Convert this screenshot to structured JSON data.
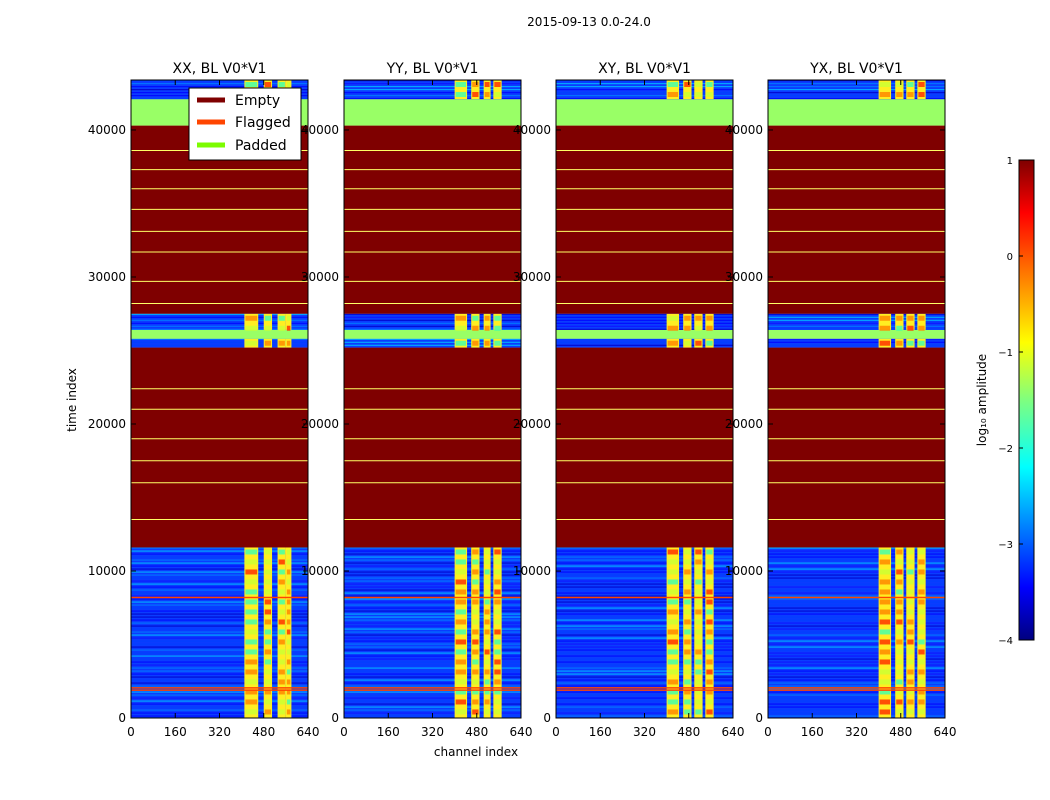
{
  "chart_data": {
    "type": "heatmap",
    "suptitle": "2015-09-13 0.0-24.0",
    "xlabel": "channel index",
    "ylabel": "time index",
    "x_ticks": [
      0,
      160,
      320,
      480,
      640
    ],
    "y_ticks": [
      0,
      10000,
      20000,
      30000,
      40000
    ],
    "xlim": [
      0,
      640
    ],
    "ylim": [
      0,
      43400
    ],
    "panels": [
      {
        "title": "XX, BL V0*V1",
        "bright_channels": [
          [
            410,
            460
          ],
          [
            480,
            510
          ],
          [
            530,
            560
          ],
          [
            560,
            580
          ]
        ]
      },
      {
        "title": "YY, BL V0*V1",
        "bright_channels": [
          [
            400,
            445
          ],
          [
            460,
            490
          ],
          [
            505,
            530
          ],
          [
            540,
            570
          ]
        ]
      },
      {
        "title": "XY, BL V0*V1",
        "bright_channels": [
          [
            400,
            445
          ],
          [
            460,
            490
          ],
          [
            500,
            530
          ],
          [
            540,
            570
          ]
        ]
      },
      {
        "title": "YX, BL V0*V1",
        "bright_channels": [
          [
            400,
            445
          ],
          [
            460,
            490
          ],
          [
            500,
            530
          ],
          [
            540,
            570
          ]
        ]
      }
    ],
    "time_regions": [
      {
        "from": 0,
        "to": 11600,
        "kind": "data"
      },
      {
        "from": 11600,
        "to": 25200,
        "kind": "empty"
      },
      {
        "from": 25200,
        "to": 25800,
        "kind": "data"
      },
      {
        "from": 25800,
        "to": 26400,
        "kind": "padded"
      },
      {
        "from": 26400,
        "to": 27500,
        "kind": "data"
      },
      {
        "from": 27500,
        "to": 40300,
        "kind": "empty"
      },
      {
        "from": 40300,
        "to": 42100,
        "kind": "padded"
      },
      {
        "from": 42100,
        "to": 43400,
        "kind": "data"
      }
    ],
    "padded_lines": [
      13500,
      16000,
      17500,
      19000,
      21000,
      22400,
      28200,
      29700,
      31700,
      33100,
      34600,
      36000,
      37300,
      38600
    ],
    "flagged_lines": [
      1900,
      2050,
      8200
    ],
    "legend": [
      {
        "label": "Empty",
        "color": "#7f0000"
      },
      {
        "label": "Flagged",
        "color": "#ff4500"
      },
      {
        "label": "Padded",
        "color": "#7cfc00"
      }
    ],
    "colorbar": {
      "label": "log₁₀ amplitude",
      "range": [
        -4,
        1
      ],
      "ticks": [
        "1",
        "0",
        "−1",
        "−2",
        "−3",
        "−4"
      ],
      "colormap": "jet"
    }
  }
}
